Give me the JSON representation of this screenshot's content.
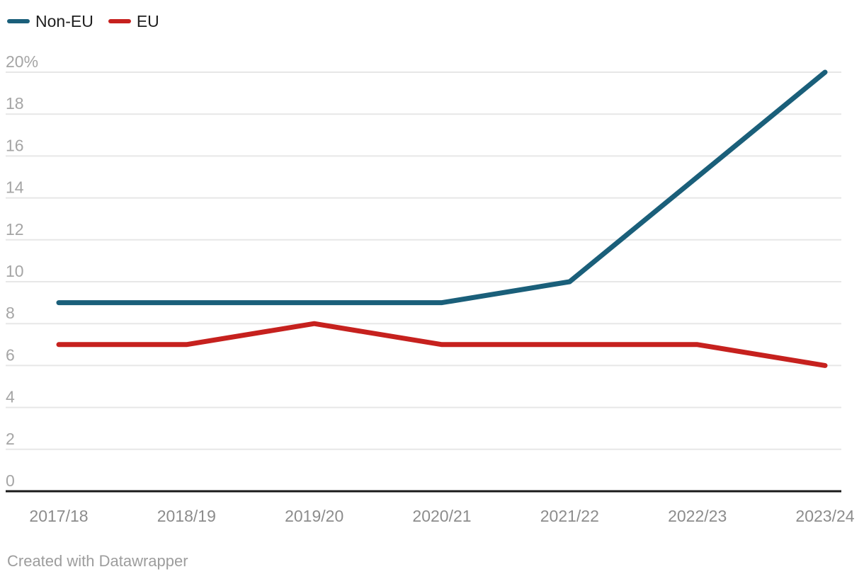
{
  "legend": {
    "items": [
      {
        "label": "Non-EU",
        "color": "#1a5f7a"
      },
      {
        "label": "EU",
        "color": "#c6211e"
      }
    ]
  },
  "footer": {
    "credit": "Created with Datawrapper"
  },
  "chart_data": {
    "type": "line",
    "title": "",
    "xlabel": "",
    "ylabel": "",
    "categories": [
      "2017/18",
      "2018/19",
      "2019/20",
      "2020/21",
      "2021/22",
      "2022/23",
      "2023/24"
    ],
    "series": [
      {
        "name": "Non-EU",
        "color": "#1a5f7a",
        "values": [
          9,
          9,
          9,
          9,
          10,
          15,
          20
        ]
      },
      {
        "name": "EU",
        "color": "#c6211e",
        "values": [
          7,
          7,
          8,
          7,
          7,
          7,
          6
        ]
      }
    ],
    "ylim": [
      0,
      20
    ],
    "yticks": [
      0,
      2,
      4,
      6,
      8,
      10,
      12,
      14,
      16,
      18,
      20
    ],
    "ytick_labels": [
      "0",
      "2",
      "4",
      "6",
      "8",
      "10",
      "12",
      "14",
      "16",
      "18",
      "20%"
    ],
    "grid": "horizontal",
    "legend_position": "top-left",
    "colors": {
      "grid": "#e7e7e7",
      "baseline": "#1a1a1a",
      "ytick_text": "#a5a5a5",
      "xtick_text": "#8c8c8c",
      "legend_text": "#1f1f1f",
      "credit_text": "#9d9d9d"
    }
  }
}
